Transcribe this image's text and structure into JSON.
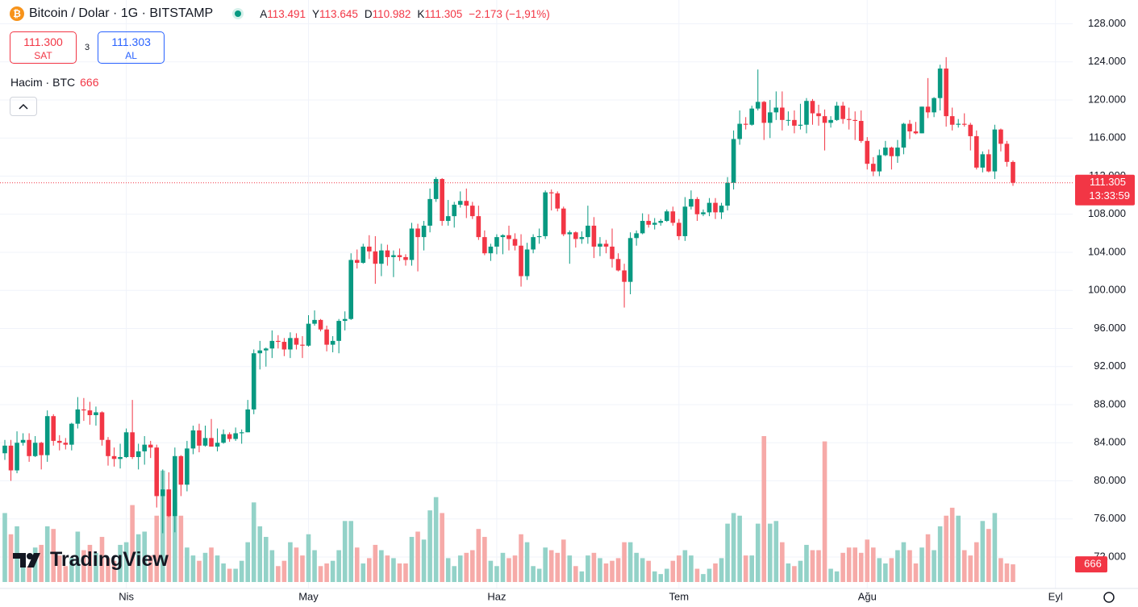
{
  "header": {
    "symbol": "Bitcoin / Dolar · 1G · BITSTAMP",
    "ohlc": [
      {
        "key": "A",
        "label": "113.491"
      },
      {
        "key": "Y",
        "label": "113.645"
      },
      {
        "key": "D",
        "label": "110.982"
      },
      {
        "key": "K",
        "label": "111.305"
      }
    ],
    "change": "−2.173 (−1,91%)",
    "sell_price": "111.300",
    "sell": "SAT",
    "spread": "3",
    "buy_price": "111.303",
    "buy": "AL",
    "volume_title": "Hacim · BTC",
    "logo": "TradingView",
    "last_price_label": "111.305",
    "countdown": "13:33:59"
  },
  "chart_data": {
    "type": "candlestick",
    "up_color": "#089981",
    "down_color": "#f23645",
    "volume_up_color": "#93d2c8",
    "volume_down_color": "#f6aaa8",
    "price_line_color": "#f23645",
    "grid": true,
    "ylim": [
      68700,
      130500
    ],
    "yticks": [
      {
        "value": 72000,
        "label": "72.000"
      },
      {
        "value": 76000,
        "label": "76.000"
      },
      {
        "value": 80000,
        "label": "80.000"
      },
      {
        "value": 84000,
        "label": "84.000"
      },
      {
        "value": 88000,
        "label": "88.000"
      },
      {
        "value": 92000,
        "label": "92.000"
      },
      {
        "value": 96000,
        "label": "96.000"
      },
      {
        "value": 100000,
        "label": "100.000"
      },
      {
        "value": 104000,
        "label": "104.000"
      },
      {
        "value": 108000,
        "label": "108.000"
      },
      {
        "value": 112000,
        "label": "112.000"
      },
      {
        "value": 116000,
        "label": "116.000"
      },
      {
        "value": 120000,
        "label": "120.000"
      },
      {
        "value": 124000,
        "label": "124.000"
      },
      {
        "value": 128000,
        "label": "128.000"
      }
    ],
    "xticks": [
      {
        "value": 20,
        "label": "Nis"
      },
      {
        "value": 50,
        "label": "May"
      },
      {
        "value": 81,
        "label": "Haz"
      },
      {
        "value": 111,
        "label": "Tem"
      },
      {
        "value": 142,
        "label": "Ağu"
      },
      {
        "value": 173,
        "label": "Eyl"
      }
    ],
    "candles": [
      [
        82900,
        84300,
        82200,
        83700
      ],
      [
        83700,
        84300,
        80000,
        81100
      ],
      [
        81100,
        85200,
        80800,
        84000
      ],
      [
        84000,
        85000,
        83700,
        84300
      ],
      [
        84300,
        85000,
        82000,
        82600
      ],
      [
        82600,
        84700,
        82500,
        84000
      ],
      [
        84000,
        84100,
        81200,
        82700
      ],
      [
        82700,
        87400,
        82000,
        86800
      ],
      [
        86800,
        87000,
        83700,
        84200
      ],
      [
        84200,
        84800,
        83200,
        84000
      ],
      [
        84000,
        84500,
        83300,
        83800
      ],
      [
        83800,
        86100,
        83200,
        86000
      ],
      [
        86000,
        88800,
        85500,
        87500
      ],
      [
        87500,
        88700,
        86300,
        87400
      ],
      [
        87400,
        88300,
        85900,
        86900
      ],
      [
        86900,
        87800,
        85800,
        87200
      ],
      [
        87200,
        87300,
        83700,
        84300
      ],
      [
        84300,
        84600,
        81600,
        82600
      ],
      [
        82600,
        83500,
        81500,
        82300
      ],
      [
        82300,
        83900,
        81300,
        82500
      ],
      [
        82500,
        85500,
        82400,
        85100
      ],
      [
        85100,
        88500,
        82300,
        82500
      ],
      [
        82500,
        83900,
        81200,
        83100
      ],
      [
        83100,
        84700,
        81700,
        83800
      ],
      [
        83800,
        84200,
        82400,
        83500
      ],
      [
        83500,
        83800,
        77200,
        78400
      ],
      [
        78400,
        81200,
        74500,
        79100
      ],
      [
        79100,
        80900,
        76200,
        76300
      ],
      [
        76300,
        83500,
        74600,
        82600
      ],
      [
        82600,
        82700,
        78400,
        79600
      ],
      [
        79600,
        84200,
        78900,
        83400
      ],
      [
        83400,
        85800,
        82800,
        85300
      ],
      [
        85300,
        86000,
        83000,
        83700
      ],
      [
        83700,
        85800,
        83600,
        84500
      ],
      [
        84500,
        86500,
        83600,
        83600
      ],
      [
        83600,
        85500,
        83100,
        84000
      ],
      [
        84000,
        85400,
        83900,
        84900
      ],
      [
        84900,
        85100,
        84100,
        84400
      ],
      [
        84400,
        85600,
        84200,
        85000
      ],
      [
        85000,
        85400,
        83900,
        85100
      ],
      [
        85100,
        88500,
        85100,
        87500
      ],
      [
        87500,
        93800,
        87000,
        93400
      ],
      [
        93400,
        94700,
        91700,
        93700
      ],
      [
        93700,
        94000,
        92000,
        93900
      ],
      [
        93900,
        95800,
        92900,
        94700
      ],
      [
        94700,
        95300,
        93900,
        94600
      ],
      [
        94600,
        95000,
        93100,
        93800
      ],
      [
        93800,
        95600,
        92900,
        95000
      ],
      [
        95000,
        95500,
        93800,
        94300
      ],
      [
        94300,
        95200,
        92900,
        94200
      ],
      [
        94200,
        97400,
        94100,
        96500
      ],
      [
        96500,
        97900,
        96300,
        96900
      ],
      [
        96900,
        97000,
        95700,
        95900
      ],
      [
        95900,
        96300,
        93600,
        94300
      ],
      [
        94300,
        95200,
        93500,
        94700
      ],
      [
        94700,
        97000,
        93400,
        96800
      ],
      [
        96800,
        97800,
        95800,
        97000
      ],
      [
        97000,
        103900,
        96900,
        103200
      ],
      [
        103200,
        104300,
        102300,
        102900
      ],
      [
        102900,
        104900,
        102800,
        104600
      ],
      [
        104600,
        105800,
        103300,
        104100
      ],
      [
        104100,
        105700,
        100700,
        102800
      ],
      [
        102800,
        104900,
        101500,
        104200
      ],
      [
        104200,
        104800,
        102600,
        103500
      ],
      [
        103500,
        104200,
        101400,
        103700
      ],
      [
        103700,
        104400,
        103100,
        103500
      ],
      [
        103500,
        103800,
        102600,
        103200
      ],
      [
        103200,
        107100,
        102600,
        106500
      ],
      [
        106500,
        107000,
        102000,
        105600
      ],
      [
        105600,
        107300,
        104200,
        106800
      ],
      [
        106800,
        110700,
        106100,
        109600
      ],
      [
        109600,
        111900,
        109300,
        111700
      ],
      [
        111700,
        111800,
        106800,
        107300
      ],
      [
        107300,
        109500,
        106800,
        107800
      ],
      [
        107800,
        109300,
        106600,
        109000
      ],
      [
        109000,
        110400,
        108700,
        109400
      ],
      [
        109400,
        110700,
        107600,
        108900
      ],
      [
        108900,
        109300,
        107500,
        107800
      ],
      [
        107800,
        108900,
        105300,
        105600
      ],
      [
        105600,
        106300,
        103700,
        103900
      ],
      [
        103900,
        104900,
        103100,
        104600
      ],
      [
        104600,
        105900,
        103800,
        105600
      ],
      [
        105600,
        105900,
        103800,
        105800
      ],
      [
        105800,
        106800,
        104200,
        105400
      ],
      [
        105400,
        106000,
        104200,
        104700
      ],
      [
        104700,
        105900,
        100400,
        101500
      ],
      [
        101500,
        105000,
        101100,
        104300
      ],
      [
        104300,
        105900,
        103900,
        105600
      ],
      [
        105600,
        106500,
        104900,
        105700
      ],
      [
        105700,
        110500,
        105400,
        110300
      ],
      [
        110300,
        110600,
        108400,
        110200
      ],
      [
        110200,
        110400,
        108300,
        108600
      ],
      [
        108600,
        108800,
        105700,
        105900
      ],
      [
        105900,
        106300,
        102800,
        106100
      ],
      [
        106100,
        106200,
        104500,
        105400
      ],
      [
        105400,
        106200,
        104900,
        105600
      ],
      [
        105600,
        108900,
        104900,
        106800
      ],
      [
        106800,
        107700,
        103400,
        104600
      ],
      [
        104600,
        105600,
        103600,
        104900
      ],
      [
        104900,
        105300,
        103900,
        104600
      ],
      [
        104600,
        106500,
        102400,
        103300
      ],
      [
        103300,
        103900,
        102000,
        102100
      ],
      [
        102100,
        102800,
        98200,
        100900
      ],
      [
        100900,
        106100,
        99600,
        105500
      ],
      [
        105500,
        106300,
        104700,
        106000
      ],
      [
        106000,
        108100,
        105900,
        107300
      ],
      [
        107300,
        108000,
        106600,
        106900
      ],
      [
        106900,
        107600,
        106400,
        107100
      ],
      [
        107100,
        107500,
        106800,
        107300
      ],
      [
        107300,
        108500,
        107200,
        108300
      ],
      [
        108300,
        108800,
        106800,
        107100
      ],
      [
        107100,
        107500,
        105300,
        105700
      ],
      [
        105700,
        109800,
        105200,
        108800
      ],
      [
        108800,
        110500,
        108500,
        109600
      ],
      [
        109600,
        109800,
        107300,
        108000
      ],
      [
        108000,
        108500,
        107800,
        108200
      ],
      [
        108200,
        109700,
        107800,
        109200
      ],
      [
        109200,
        109700,
        107500,
        108200
      ],
      [
        108200,
        109200,
        107500,
        108900
      ],
      [
        108900,
        111900,
        108400,
        111300
      ],
      [
        111300,
        116800,
        110600,
        115900
      ],
      [
        115900,
        118900,
        115300,
        117500
      ],
      [
        117500,
        118200,
        116900,
        117400
      ],
      [
        117400,
        119400,
        117300,
        119100
      ],
      [
        119100,
        123200,
        118900,
        119800
      ],
      [
        119800,
        119900,
        115800,
        117600
      ],
      [
        117600,
        120000,
        116000,
        118700
      ],
      [
        118700,
        120900,
        117900,
        119200
      ],
      [
        119200,
        120900,
        116800,
        117900
      ],
      [
        117900,
        118800,
        117300,
        117900
      ],
      [
        117900,
        118900,
        116500,
        117300
      ],
      [
        117300,
        119600,
        116900,
        117400
      ],
      [
        117400,
        120200,
        116500,
        119900
      ],
      [
        119900,
        120100,
        117400,
        118600
      ],
      [
        118600,
        119500,
        117300,
        118300
      ],
      [
        118300,
        119000,
        114700,
        117600
      ],
      [
        117600,
        118300,
        117100,
        117900
      ],
      [
        117900,
        119800,
        117800,
        119400
      ],
      [
        119400,
        119800,
        117500,
        118000
      ],
      [
        118000,
        119200,
        116900,
        117900
      ],
      [
        117900,
        118800,
        115800,
        117800
      ],
      [
        117800,
        118900,
        115500,
        115700
      ],
      [
        115700,
        116100,
        112700,
        113300
      ],
      [
        113300,
        114000,
        112000,
        112500
      ],
      [
        112500,
        114800,
        112000,
        114200
      ],
      [
        114200,
        115700,
        114100,
        115000
      ],
      [
        115000,
        115100,
        112700,
        114100
      ],
      [
        114100,
        115800,
        113400,
        115000
      ],
      [
        115000,
        117600,
        114300,
        117500
      ],
      [
        117500,
        117900,
        115900,
        116700
      ],
      [
        116700,
        117700,
        116400,
        116500
      ],
      [
        116500,
        119300,
        116500,
        119300
      ],
      [
        119300,
        122300,
        118100,
        118700
      ],
      [
        118700,
        120300,
        118200,
        120200
      ],
      [
        120200,
        123700,
        118900,
        123300
      ],
      [
        123300,
        124500,
        117200,
        118300
      ],
      [
        118300,
        119200,
        116800,
        117400
      ],
      [
        117400,
        118000,
        117100,
        117500
      ],
      [
        117500,
        118600,
        117200,
        117400
      ],
      [
        117400,
        117600,
        114700,
        116200
      ],
      [
        116200,
        116800,
        112700,
        112900
      ],
      [
        112900,
        114600,
        112400,
        114300
      ],
      [
        114300,
        114800,
        112400,
        112500
      ],
      [
        112500,
        117400,
        111700,
        116900
      ],
      [
        116900,
        117000,
        114600,
        115400
      ],
      [
        115400,
        115700,
        113000,
        113500
      ],
      [
        113491,
        113645,
        110982,
        111305
      ]
    ],
    "volume": [
      2600,
      1800,
      2100,
      800,
      600,
      1300,
      1400,
      2100,
      2000,
      1000,
      600,
      900,
      1900,
      1200,
      1400,
      1100,
      1700,
      900,
      800,
      1400,
      1500,
      2900,
      1800,
      1900,
      1000,
      2500,
      4200,
      2600,
      3000,
      2500,
      1300,
      1000,
      800,
      1100,
      1300,
      1000,
      700,
      500,
      500,
      800,
      1500,
      3000,
      2100,
      1700,
      1200,
      600,
      800,
      1500,
      1300,
      1000,
      1800,
      1200,
      600,
      700,
      800,
      1200,
      2300,
      2300,
      1300,
      700,
      900,
      1400,
      1200,
      1000,
      900,
      700,
      700,
      1700,
      1900,
      1600,
      2700,
      3200,
      2600,
      900,
      600,
      1000,
      1100,
      1200,
      2000,
      1700,
      800,
      600,
      1100,
      900,
      1000,
      1800,
      1500,
      600,
      500,
      1300,
      1200,
      1100,
      1600,
      1000,
      600,
      400,
      1000,
      1100,
      900,
      700,
      800,
      900,
      1500,
      1500,
      1100,
      900,
      800,
      400,
      300,
      500,
      800,
      1000,
      1200,
      1000,
      500,
      300,
      500,
      700,
      900,
      2200,
      2600,
      2500,
      1000,
      1000,
      2200,
      5500,
      2200,
      2300,
      1500,
      700,
      600,
      800,
      1400,
      1200,
      1200,
      5300,
      500,
      400,
      1100,
      1300,
      1300,
      1100,
      1600,
      1300,
      900,
      700,
      900,
      1200,
      1500,
      1200,
      700,
      1300,
      1800,
      1200,
      2100,
      2500,
      2800,
      2500,
      1200,
      1000,
      1500,
      2300,
      2000,
      2600,
      900,
      700,
      666
    ]
  }
}
